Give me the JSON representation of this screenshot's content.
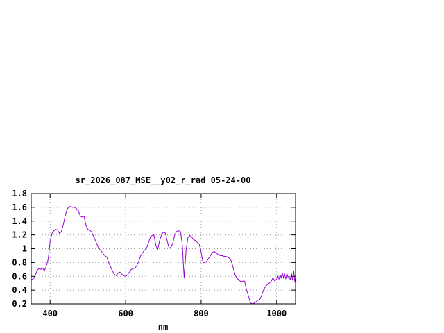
{
  "chart_data": {
    "type": "line",
    "title": "sr_2026_087_MSE__y02_r_rad 05-24-00",
    "xlabel": "nm",
    "ylabel": "",
    "xlim": [
      350,
      1050
    ],
    "ylim": [
      0.2,
      1.8
    ],
    "x_ticks": [
      400,
      600,
      800,
      1000
    ],
    "x_tick_labels": [
      "400",
      "600",
      "800",
      "1000"
    ],
    "y_ticks": [
      0.2,
      0.4,
      0.6,
      0.8,
      1.0,
      1.2,
      1.4,
      1.6,
      1.8
    ],
    "y_tick_labels": [
      "0.2",
      "0.4",
      "0.6",
      "0.8",
      "1",
      "1.2",
      "1.4",
      "1.6",
      "1.8"
    ],
    "grid": true,
    "colors": {
      "series": "#9400d3",
      "grid": "#a0a0a0",
      "axes": "#000000"
    },
    "series": [
      {
        "x": [
          350,
          355,
          360,
          365,
          370,
          375,
          380,
          385,
          390,
          395,
          400,
          405,
          410,
          415,
          420,
          425,
          430,
          435,
          440,
          445,
          450,
          455,
          460,
          465,
          470,
          475,
          480,
          485,
          490,
          495,
          500,
          505,
          510,
          515,
          520,
          525,
          530,
          535,
          540,
          545,
          550,
          555,
          560,
          565,
          570,
          575,
          580,
          585,
          590,
          595,
          600,
          605,
          610,
          615,
          620,
          625,
          630,
          635,
          640,
          645,
          650,
          655,
          660,
          665,
          670,
          675,
          680,
          685,
          690,
          695,
          700,
          705,
          710,
          715,
          720,
          725,
          730,
          735,
          740,
          745,
          750,
          755,
          760,
          765,
          770,
          775,
          780,
          785,
          790,
          795,
          800,
          805,
          810,
          815,
          820,
          825,
          830,
          835,
          840,
          845,
          850,
          855,
          860,
          865,
          870,
          875,
          880,
          885,
          890,
          895,
          900,
          905,
          910,
          915,
          920,
          925,
          930,
          935,
          940,
          945,
          950,
          955,
          960,
          965,
          970,
          975,
          980,
          985,
          990,
          995,
          1000,
          1003,
          1006,
          1009,
          1012,
          1015,
          1018,
          1021,
          1024,
          1027,
          1030,
          1033,
          1036,
          1039,
          1042,
          1045,
          1048,
          1050
        ],
        "y": [
          0.55,
          0.56,
          0.6,
          0.68,
          0.71,
          0.7,
          0.72,
          0.68,
          0.75,
          0.85,
          1.1,
          1.22,
          1.26,
          1.28,
          1.27,
          1.22,
          1.25,
          1.35,
          1.48,
          1.57,
          1.61,
          1.61,
          1.6,
          1.6,
          1.58,
          1.55,
          1.47,
          1.46,
          1.47,
          1.34,
          1.28,
          1.27,
          1.24,
          1.18,
          1.12,
          1.05,
          1.0,
          0.97,
          0.93,
          0.9,
          0.88,
          0.8,
          0.74,
          0.68,
          0.63,
          0.61,
          0.65,
          0.66,
          0.63,
          0.61,
          0.6,
          0.62,
          0.66,
          0.7,
          0.71,
          0.72,
          0.76,
          0.82,
          0.9,
          0.94,
          0.98,
          1.0,
          1.08,
          1.16,
          1.19,
          1.2,
          1.05,
          0.99,
          1.12,
          1.2,
          1.24,
          1.23,
          1.12,
          1.01,
          1.02,
          1.08,
          1.2,
          1.25,
          1.26,
          1.25,
          1.07,
          0.58,
          0.98,
          1.16,
          1.19,
          1.17,
          1.13,
          1.12,
          1.09,
          1.07,
          0.95,
          0.8,
          0.8,
          0.82,
          0.86,
          0.9,
          0.95,
          0.96,
          0.93,
          0.92,
          0.9,
          0.9,
          0.89,
          0.89,
          0.88,
          0.86,
          0.82,
          0.72,
          0.62,
          0.57,
          0.55,
          0.52,
          0.53,
          0.53,
          0.41,
          0.32,
          0.22,
          0.2,
          0.21,
          0.23,
          0.25,
          0.26,
          0.32,
          0.4,
          0.45,
          0.48,
          0.5,
          0.52,
          0.58,
          0.53,
          0.56,
          0.6,
          0.56,
          0.62,
          0.58,
          0.65,
          0.58,
          0.63,
          0.56,
          0.64,
          0.59,
          0.6,
          0.55,
          0.65,
          0.54,
          0.68,
          0.52,
          0.58
        ]
      }
    ]
  }
}
